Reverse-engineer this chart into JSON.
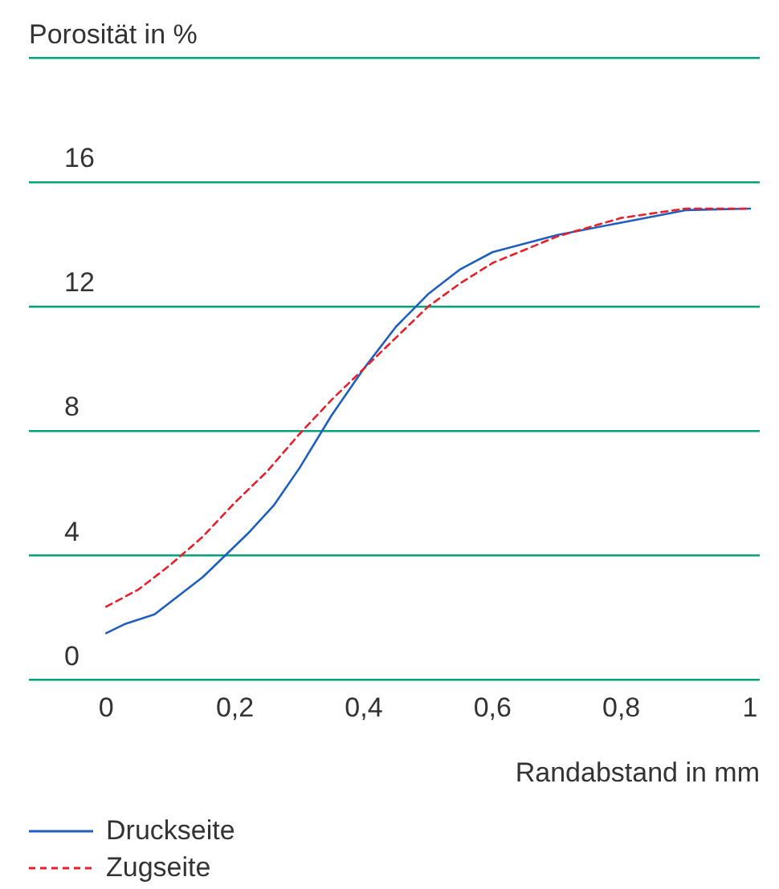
{
  "chart_data": {
    "type": "line",
    "xlabel": "Randabstand in mm",
    "ylabel": "Porosität in %",
    "series": [
      {
        "name": "Druckseite",
        "color": "#1f5fbf",
        "line_style": "solid",
        "x": [
          0,
          0.03,
          0.075,
          0.15,
          0.22,
          0.26,
          0.3,
          0.35,
          0.4,
          0.45,
          0.5,
          0.55,
          0.6,
          0.7,
          0.8,
          0.9,
          1.0
        ],
        "values": [
          1.5,
          1.8,
          2.1,
          3.3,
          4.7,
          5.6,
          6.8,
          8.5,
          10.0,
          11.35,
          12.4,
          13.2,
          13.75,
          14.3,
          14.7,
          15.1,
          15.15
        ]
      },
      {
        "name": "Zugseite",
        "color": "#e8202a",
        "line_style": "dashed",
        "x": [
          0,
          0.05,
          0.1,
          0.15,
          0.2,
          0.25,
          0.3,
          0.35,
          0.4,
          0.45,
          0.5,
          0.55,
          0.6,
          0.7,
          0.8,
          0.9,
          1.0
        ],
        "values": [
          2.35,
          2.9,
          3.7,
          4.6,
          5.7,
          6.7,
          7.9,
          9.0,
          10.0,
          11.0,
          12.0,
          12.75,
          13.4,
          14.25,
          14.85,
          15.15,
          15.15
        ]
      }
    ],
    "xlim": [
      -0.12,
      1.015
    ],
    "xticks": [
      0,
      {
        "value": 0.2,
        "label": "0,2"
      },
      {
        "value": 0.4,
        "label": "0,4"
      },
      {
        "value": 0.6,
        "label": "0,6"
      },
      {
        "value": 0.8,
        "label": "0,8"
      },
      1
    ],
    "ylim": [
      0,
      20
    ],
    "yticks": [
      0,
      4,
      8,
      12,
      16,
      {
        "value": 20,
        "label": null
      }
    ],
    "grid": "y",
    "legend": "bottom",
    "marker": "none"
  }
}
